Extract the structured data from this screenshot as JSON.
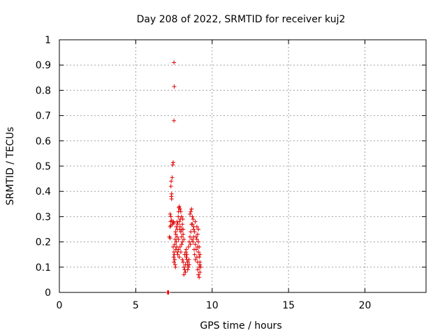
{
  "chart_data": {
    "type": "scatter",
    "title": "Day 208 of 2022, SRMTID for receiver kuj2",
    "xlabel": "GPS time / hours",
    "ylabel": "SRMTID / TECUs",
    "xlim": [
      0,
      24
    ],
    "ylim": [
      0,
      1
    ],
    "grid": true,
    "marker": "+",
    "color": "#e00000",
    "x_ticks": [
      0,
      5,
      10,
      15,
      20
    ],
    "x_tick_labels": [
      "0",
      "5",
      "10",
      "15",
      "20"
    ],
    "y_ticks": [
      0,
      0.1,
      0.2,
      0.3,
      0.4,
      0.5,
      0.6,
      0.7,
      0.8,
      0.9,
      1
    ],
    "y_tick_labels": [
      "0",
      "0.1",
      "0.2",
      "0.3",
      "0.4",
      "0.5",
      "0.6",
      "0.7",
      "0.8",
      "0.9",
      "1"
    ],
    "series": [
      {
        "name": "kuj2",
        "points": [
          [
            7.1,
            0.0
          ],
          [
            7.12,
            0.0
          ],
          [
            7.15,
            0.0
          ],
          [
            7.08,
            0.0
          ],
          [
            7.5,
            0.91
          ],
          [
            7.52,
            0.815
          ],
          [
            7.5,
            0.68
          ],
          [
            7.45,
            0.515
          ],
          [
            7.42,
            0.505
          ],
          [
            7.38,
            0.455
          ],
          [
            7.32,
            0.44
          ],
          [
            7.3,
            0.42
          ],
          [
            7.35,
            0.39
          ],
          [
            7.33,
            0.38
          ],
          [
            7.35,
            0.37
          ],
          [
            7.25,
            0.31
          ],
          [
            7.3,
            0.3
          ],
          [
            7.28,
            0.28
          ],
          [
            7.35,
            0.285
          ],
          [
            7.4,
            0.27
          ],
          [
            7.25,
            0.26
          ],
          [
            7.3,
            0.265
          ],
          [
            7.45,
            0.28
          ],
          [
            7.5,
            0.275
          ],
          [
            7.2,
            0.22
          ],
          [
            7.25,
            0.215
          ],
          [
            7.45,
            0.18
          ],
          [
            7.5,
            0.16
          ],
          [
            7.48,
            0.14
          ],
          [
            7.55,
            0.13
          ],
          [
            7.5,
            0.12
          ],
          [
            7.6,
            0.1
          ],
          [
            7.58,
            0.11
          ],
          [
            7.52,
            0.15
          ],
          [
            7.62,
            0.17
          ],
          [
            7.55,
            0.19
          ],
          [
            7.65,
            0.2
          ],
          [
            7.7,
            0.22
          ],
          [
            7.72,
            0.25
          ],
          [
            7.75,
            0.27
          ],
          [
            7.78,
            0.3
          ],
          [
            7.8,
            0.32
          ],
          [
            7.82,
            0.335
          ],
          [
            7.85,
            0.34
          ],
          [
            7.9,
            0.33
          ],
          [
            7.95,
            0.32
          ],
          [
            8.0,
            0.3
          ],
          [
            7.85,
            0.28
          ],
          [
            7.9,
            0.26
          ],
          [
            7.95,
            0.24
          ],
          [
            8.0,
            0.22
          ],
          [
            8.05,
            0.2
          ],
          [
            7.9,
            0.18
          ],
          [
            7.8,
            0.17
          ],
          [
            7.75,
            0.15
          ],
          [
            7.85,
            0.14
          ],
          [
            7.95,
            0.16
          ],
          [
            8.0,
            0.19
          ],
          [
            8.05,
            0.27
          ],
          [
            8.1,
            0.25
          ],
          [
            8.1,
            0.23
          ],
          [
            8.15,
            0.21
          ],
          [
            8.05,
            0.13
          ],
          [
            8.1,
            0.12
          ],
          [
            8.15,
            0.1
          ],
          [
            8.2,
            0.09
          ],
          [
            8.25,
            0.08
          ],
          [
            8.15,
            0.07
          ],
          [
            8.25,
            0.11
          ],
          [
            8.3,
            0.14
          ],
          [
            8.35,
            0.13
          ],
          [
            8.4,
            0.12
          ],
          [
            8.45,
            0.1
          ],
          [
            8.5,
            0.11
          ],
          [
            8.4,
            0.09
          ],
          [
            8.35,
            0.15
          ],
          [
            8.3,
            0.17
          ],
          [
            8.45,
            0.18
          ],
          [
            8.5,
            0.2
          ],
          [
            8.55,
            0.22
          ],
          [
            8.6,
            0.24
          ],
          [
            8.65,
            0.27
          ],
          [
            8.7,
            0.3
          ],
          [
            8.6,
            0.32
          ],
          [
            8.55,
            0.31
          ],
          [
            8.65,
            0.33
          ],
          [
            8.75,
            0.29
          ],
          [
            8.7,
            0.27
          ],
          [
            8.8,
            0.26
          ],
          [
            8.85,
            0.24
          ],
          [
            8.8,
            0.22
          ],
          [
            8.75,
            0.2
          ],
          [
            8.9,
            0.19
          ],
          [
            8.95,
            0.17
          ],
          [
            8.85,
            0.15
          ],
          [
            9.0,
            0.14
          ],
          [
            8.9,
            0.13
          ],
          [
            9.05,
            0.12
          ],
          [
            9.0,
            0.21
          ],
          [
            9.05,
            0.23
          ],
          [
            9.1,
            0.25
          ],
          [
            9.1,
            0.2
          ],
          [
            9.15,
            0.18
          ],
          [
            9.1,
            0.16
          ],
          [
            9.15,
            0.14
          ],
          [
            9.2,
            0.12
          ],
          [
            9.15,
            0.1
          ],
          [
            9.2,
            0.08
          ],
          [
            9.1,
            0.07
          ],
          [
            9.05,
            0.09
          ],
          [
            9.15,
            0.06
          ],
          [
            9.2,
            0.11
          ],
          [
            9.25,
            0.1
          ],
          [
            8.95,
            0.22
          ],
          [
            9.0,
            0.26
          ],
          [
            8.9,
            0.28
          ],
          [
            9.05,
            0.18
          ],
          [
            9.2,
            0.15
          ],
          [
            7.6,
            0.24
          ],
          [
            7.65,
            0.26
          ],
          [
            7.7,
            0.28
          ],
          [
            7.58,
            0.21
          ],
          [
            7.62,
            0.23
          ],
          [
            7.68,
            0.18
          ],
          [
            7.72,
            0.16
          ],
          [
            7.8,
            0.21
          ],
          [
            7.88,
            0.25
          ],
          [
            7.92,
            0.29
          ],
          [
            8.02,
            0.25
          ],
          [
            8.08,
            0.29
          ],
          [
            8.2,
            0.15
          ],
          [
            8.28,
            0.16
          ],
          [
            8.38,
            0.11
          ],
          [
            8.48,
            0.13
          ],
          [
            8.58,
            0.19
          ],
          [
            8.68,
            0.21
          ],
          [
            8.78,
            0.25
          ],
          [
            8.82,
            0.17
          ]
        ]
      }
    ]
  }
}
